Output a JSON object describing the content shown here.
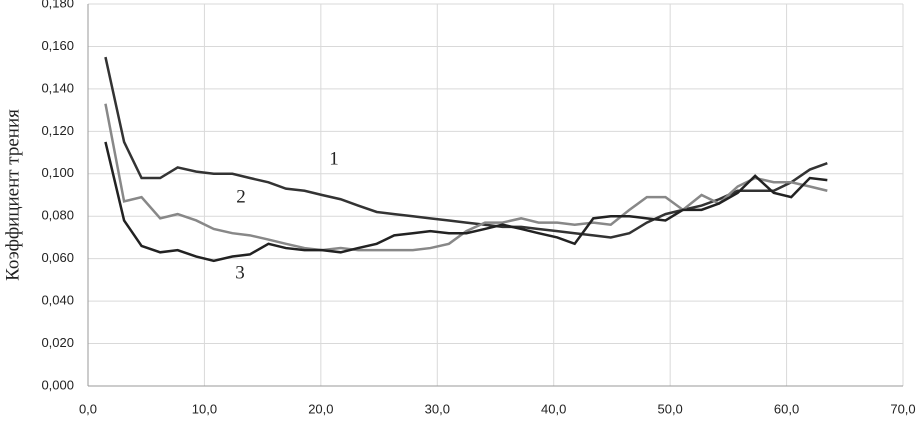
{
  "chart_data": {
    "type": "line",
    "ylabel": "Коэффициент трения",
    "x": [
      1.5,
      3.1,
      4.6,
      6.2,
      7.7,
      9.3,
      10.8,
      12.4,
      13.9,
      15.5,
      17,
      18.6,
      20.1,
      21.7,
      23.2,
      24.8,
      26.3,
      27.9,
      29.4,
      31,
      32.5,
      34.1,
      35.6,
      37.2,
      38.7,
      40.3,
      41.8,
      43.4,
      44.9,
      46.5,
      48,
      49.6,
      51.1,
      52.7,
      54.2,
      55.8,
      57.3,
      58.9,
      60.4,
      62,
      63.5
    ],
    "series": [
      {
        "color": "#333333",
        "values": [
          0.155,
          0.115,
          0.098,
          0.098,
          0.103,
          0.101,
          0.1,
          0.1,
          0.098,
          0.096,
          0.093,
          0.092,
          0.09,
          0.088,
          0.085,
          0.082,
          0.081,
          0.08,
          0.079,
          0.078,
          0.077,
          0.076,
          0.075,
          0.075,
          0.074,
          0.073,
          0.072,
          0.071,
          0.07,
          0.072,
          0.077,
          0.081,
          0.083,
          0.085,
          0.088,
          0.092,
          0.092,
          0.092,
          0.096,
          0.102,
          0.105
        ]
      },
      {
        "color": "#888888",
        "values": [
          0.133,
          0.087,
          0.089,
          0.079,
          0.081,
          0.078,
          0.074,
          0.072,
          0.071,
          0.069,
          0.067,
          0.065,
          0.064,
          0.065,
          0.064,
          0.064,
          0.064,
          0.064,
          0.065,
          0.067,
          0.073,
          0.077,
          0.077,
          0.079,
          0.077,
          0.077,
          0.076,
          0.077,
          0.076,
          0.083,
          0.089,
          0.089,
          0.083,
          0.09,
          0.086,
          0.094,
          0.098,
          0.096,
          0.096,
          0.094,
          0.092
        ]
      },
      {
        "color": "#222222",
        "values": [
          0.115,
          0.078,
          0.066,
          0.063,
          0.064,
          0.061,
          0.059,
          0.061,
          0.062,
          0.067,
          0.065,
          0.064,
          0.064,
          0.063,
          0.065,
          0.067,
          0.071,
          0.072,
          0.073,
          0.072,
          0.072,
          0.074,
          0.076,
          0.074,
          0.072,
          0.07,
          0.067,
          0.079,
          0.08,
          0.08,
          0.079,
          0.078,
          0.083,
          0.083,
          0.086,
          0.091,
          0.099,
          0.091,
          0.089,
          0.098,
          0.097
        ]
      }
    ],
    "annotations": [
      "1",
      "2",
      "3"
    ],
    "xlim": [
      0,
      70
    ],
    "xticks": [
      {
        "value": 0,
        "label": "0,0"
      },
      {
        "value": 10,
        "label": "10,0"
      },
      {
        "value": 20,
        "label": "20,0"
      },
      {
        "value": 30,
        "label": "30,0"
      },
      {
        "value": 40,
        "label": "40,0"
      },
      {
        "value": 50,
        "label": "50,0"
      },
      {
        "value": 60,
        "label": "60,0"
      },
      {
        "value": 70,
        "label": "70,0"
      }
    ],
    "ylim": [
      0,
      0.18
    ],
    "yticks": [
      {
        "value": 0,
        "label": "0,000"
      },
      {
        "value": 0.02,
        "label": "0,020"
      },
      {
        "value": 0.04,
        "label": "0,040"
      },
      {
        "value": 0.06,
        "label": "0,060"
      },
      {
        "value": 0.08,
        "label": "0,080"
      },
      {
        "value": 0.1,
        "label": "0,100"
      },
      {
        "value": 0.12,
        "label": "0,120"
      },
      {
        "value": 0.14,
        "label": "0,140"
      },
      {
        "value": 0.16,
        "label": "0,160"
      },
      {
        "value": 0.18,
        "label": "0,180"
      }
    ],
    "grid": true
  }
}
